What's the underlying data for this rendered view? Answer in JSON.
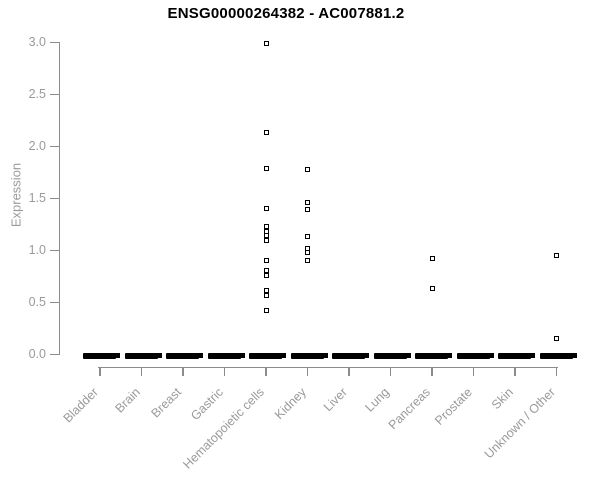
{
  "chart_data": {
    "type": "scatter",
    "variant": "strip-plot",
    "title": "ENSG00000264382 - AC007881.2",
    "xlabel": "",
    "ylabel": "Expression",
    "ylim": [
      0.0,
      3.0
    ],
    "yticks": [
      "0.0",
      "0.5",
      "1.0",
      "1.5",
      "2.0",
      "2.5",
      "3.0"
    ],
    "grid": false,
    "legend": false,
    "marker": "open-square",
    "categories": [
      "Bladder",
      "Brain",
      "Breast",
      "Gastric",
      "Hematopoietic cells",
      "Kidney",
      "Liver",
      "Lung",
      "Pancreas",
      "Prostate",
      "Skin",
      "Unknown / Other"
    ],
    "series": [
      {
        "name": "Bladder",
        "values": [],
        "zero_cluster": true
      },
      {
        "name": "Brain",
        "values": [],
        "zero_cluster": true
      },
      {
        "name": "Breast",
        "values": [],
        "zero_cluster": true
      },
      {
        "name": "Gastric",
        "values": [],
        "zero_cluster": true
      },
      {
        "name": "Hematopoietic cells",
        "values": [
          2.99,
          2.13,
          1.79,
          1.4,
          1.23,
          1.18,
          1.14,
          1.1,
          0.9,
          0.81,
          0.76,
          0.62,
          0.57,
          0.42
        ],
        "zero_cluster": true
      },
      {
        "name": "Kidney",
        "values": [
          1.78,
          1.46,
          1.39,
          1.13,
          1.02,
          0.98,
          0.9
        ],
        "zero_cluster": true
      },
      {
        "name": "Liver",
        "values": [],
        "zero_cluster": true
      },
      {
        "name": "Lung",
        "values": [],
        "zero_cluster": true
      },
      {
        "name": "Pancreas",
        "values": [
          0.92,
          0.63
        ],
        "zero_cluster": true
      },
      {
        "name": "Prostate",
        "values": [],
        "zero_cluster": true
      },
      {
        "name": "Skin",
        "values": [],
        "zero_cluster": true
      },
      {
        "name": "Unknown / Other",
        "values": [
          0.95,
          0.15
        ],
        "zero_cluster": true
      }
    ],
    "colors": {
      "marker": "#000000",
      "axis": "#8c8c8c",
      "tick_label": "#9a9a9a",
      "title": "#000000",
      "background": "#ffffff"
    }
  }
}
